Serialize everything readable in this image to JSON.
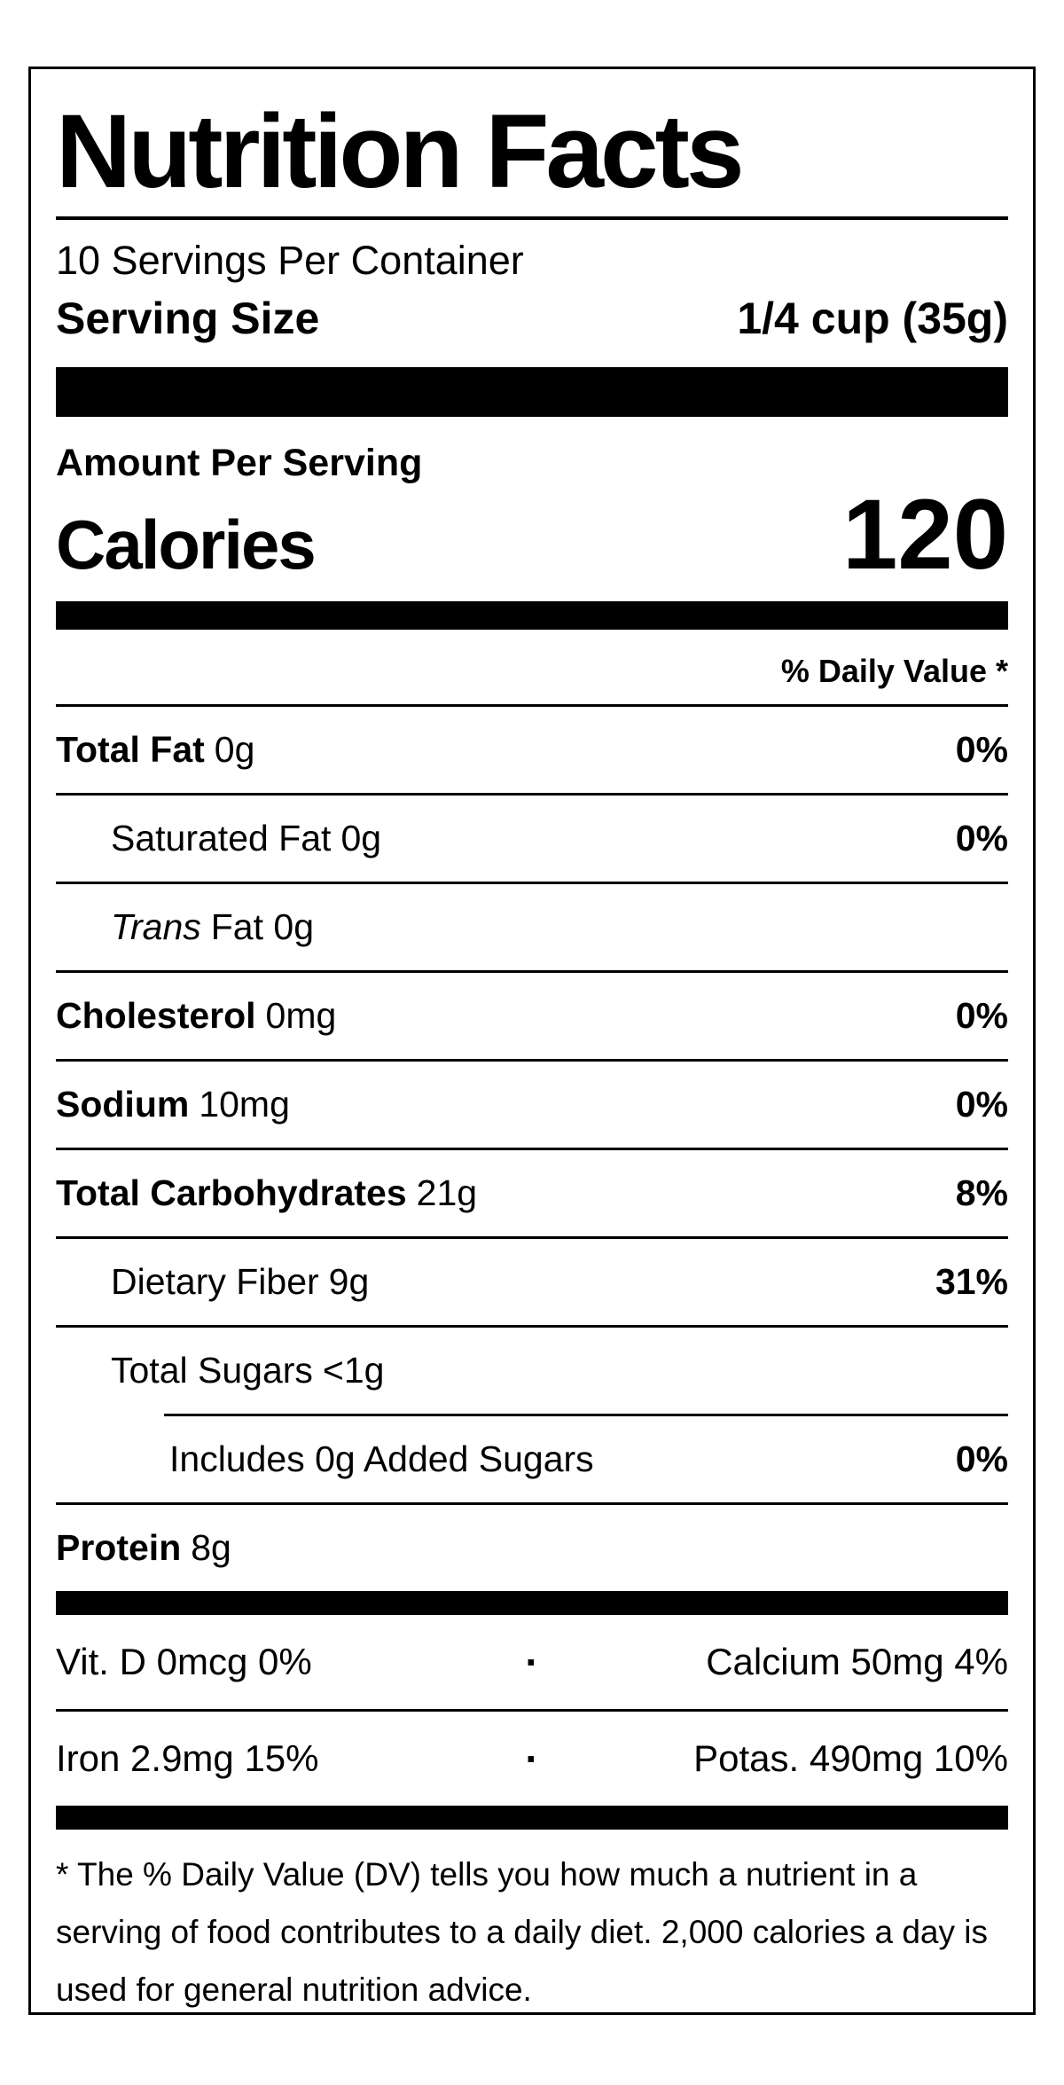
{
  "title": "Nutrition Facts",
  "servings_per_container": "10 Servings Per Container",
  "serving_size": {
    "label": "Serving Size",
    "value": "1/4 cup (35g)"
  },
  "calories": {
    "section_label": "Amount Per Serving",
    "label": "Calories",
    "value": "120"
  },
  "daily_value_header": "% Daily Value *",
  "nutrient_rows": [
    {
      "name": "Total Fat",
      "name_bold": true,
      "name_italic": false,
      "amount": "0g",
      "daily_value": "0%",
      "indent": 0,
      "divider_after": "full"
    },
    {
      "name": "Saturated Fat",
      "name_bold": false,
      "name_italic": false,
      "amount": "0g",
      "daily_value": "0%",
      "indent": 1,
      "divider_after": "full"
    },
    {
      "name": "Trans",
      "name_bold": false,
      "name_italic": true,
      "amount": "Fat 0g",
      "daily_value": "",
      "indent": 1,
      "divider_after": "full"
    },
    {
      "name": "Cholesterol",
      "name_bold": true,
      "name_italic": false,
      "amount": "0mg",
      "daily_value": "0%",
      "indent": 0,
      "divider_after": "full"
    },
    {
      "name": "Sodium",
      "name_bold": true,
      "name_italic": false,
      "amount": "10mg",
      "daily_value": "0%",
      "indent": 0,
      "divider_after": "full"
    },
    {
      "name": "Total Carbohydrates",
      "name_bold": true,
      "name_italic": false,
      "amount": "21g",
      "daily_value": "8%",
      "indent": 0,
      "divider_after": "full"
    },
    {
      "name": "Dietary Fiber",
      "name_bold": false,
      "name_italic": false,
      "amount": "9g",
      "daily_value": "31%",
      "indent": 1,
      "divider_after": "full"
    },
    {
      "name": "Total Sugars",
      "name_bold": false,
      "name_italic": false,
      "amount": "<1g",
      "daily_value": "",
      "indent": 1,
      "divider_after": "indent"
    },
    {
      "name": "Includes 0g Added Sugars",
      "name_bold": false,
      "name_italic": false,
      "amount": "",
      "daily_value": "0%",
      "indent": 2,
      "divider_after": "full"
    },
    {
      "name": "Protein",
      "name_bold": true,
      "name_italic": false,
      "amount": "8g",
      "daily_value": "",
      "indent": 0,
      "divider_after": "none"
    }
  ],
  "micronutrients": [
    {
      "left": "Vit. D 0mcg 0%",
      "separator": "·",
      "right": "Calcium 50mg 4%"
    },
    {
      "left": "Iron 2.9mg 15%",
      "separator": "·",
      "right": "Potas. 490mg 10%"
    }
  ],
  "footnote": "* The % Daily Value (DV) tells you how much a nutrient in a serving of food contributes to a daily diet. 2,000 calories a day is used for general nutrition advice.",
  "colors": {
    "text": "#000000",
    "background": "#ffffff"
  }
}
